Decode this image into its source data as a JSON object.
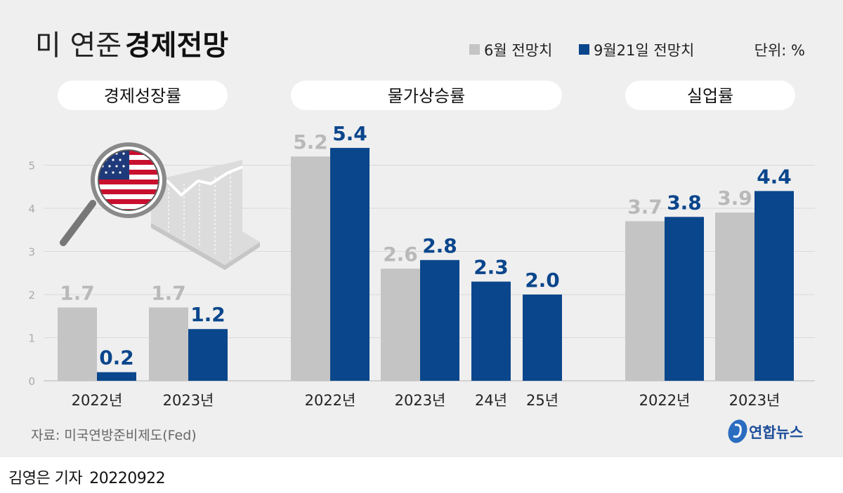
{
  "header": {
    "title_prefix": "미 연준",
    "title_main": "경제전망",
    "unit": "단위: %"
  },
  "colors": {
    "june": "#c4c4c4",
    "september": "#0a468c",
    "background": "#efefef",
    "pill": "#ffffff"
  },
  "chart_data": {
    "type": "bar",
    "ylim": [
      0,
      5.5
    ],
    "yticks": [
      0,
      1,
      2,
      3,
      4,
      5
    ],
    "legend": [
      "6월 전망치",
      "9월21일 전망치"
    ],
    "groups": [
      {
        "name": "경제성장률",
        "categories": [
          "2022년",
          "2023년"
        ],
        "series": [
          {
            "name": "6월 전망치",
            "values": [
              1.7,
              1.7
            ]
          },
          {
            "name": "9월21일 전망치",
            "values": [
              0.2,
              1.2
            ]
          }
        ]
      },
      {
        "name": "물가상승률",
        "categories": [
          "2022년",
          "2023년",
          "24년",
          "25년"
        ],
        "series": [
          {
            "name": "6월 전망치",
            "values": [
              5.2,
              2.6,
              null,
              null
            ]
          },
          {
            "name": "9월21일 전망치",
            "values": [
              5.4,
              2.8,
              2.3,
              2.0
            ]
          }
        ]
      },
      {
        "name": "실업률",
        "categories": [
          "2022년",
          "2023년"
        ],
        "series": [
          {
            "name": "6월 전망치",
            "values": [
              3.7,
              3.9
            ]
          },
          {
            "name": "9월21일 전망치",
            "values": [
              3.8,
              4.4
            ]
          }
        ]
      }
    ]
  },
  "footer": {
    "source": "자료: 미국연방준비제도(Fed)",
    "logo_text": "연합뉴스",
    "byline": "김영은 기자",
    "date": "20220922"
  }
}
